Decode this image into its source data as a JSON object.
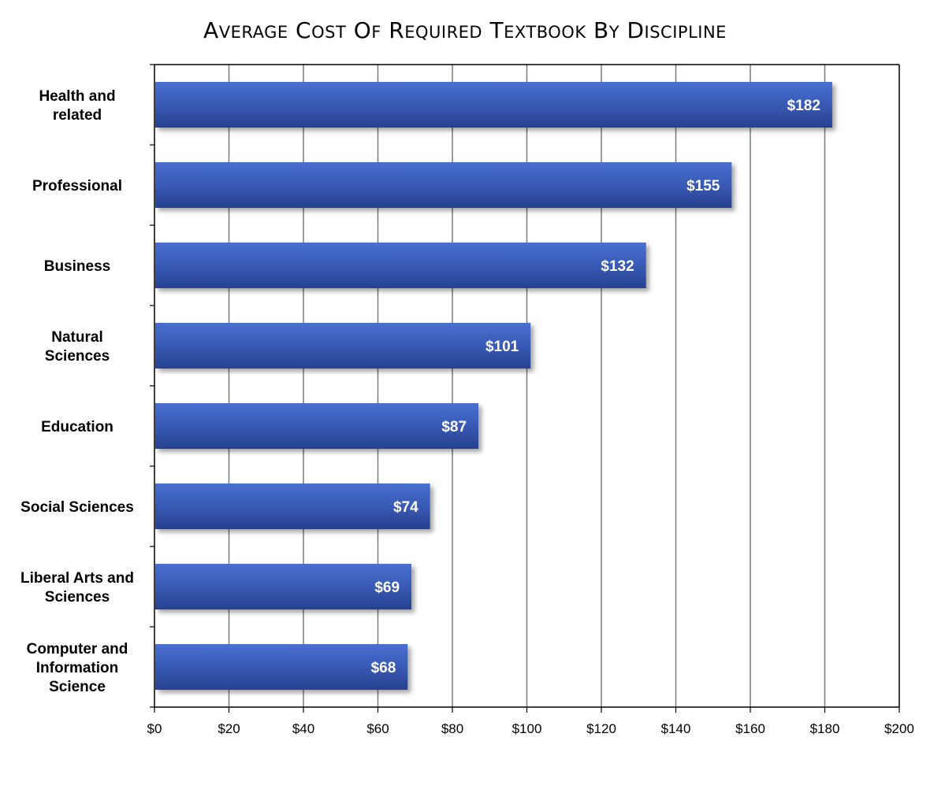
{
  "chart_data": {
    "type": "bar",
    "orientation": "horizontal",
    "title": "Average Cost of Required textbook by Discipline",
    "xlabel": "",
    "ylabel": "",
    "categories": [
      "Health and related",
      "Professional",
      "Business",
      "Natural Sciences",
      "Education",
      "Social Sciences",
      "Liberal Arts and Sciences",
      "Computer and Information Science"
    ],
    "category_lines": [
      [
        "Health and",
        "related"
      ],
      [
        "Professional"
      ],
      [
        "Business"
      ],
      [
        "Natural",
        "Sciences"
      ],
      [
        "Education"
      ],
      [
        "Social Sciences"
      ],
      [
        "Liberal Arts and",
        "Sciences"
      ],
      [
        "Computer and",
        "Information",
        "Science"
      ]
    ],
    "values": [
      182,
      155,
      132,
      101,
      87,
      74,
      69,
      68
    ],
    "data_labels": [
      "$182",
      "$155",
      "$132",
      "$101",
      "$87",
      "$74",
      "$69",
      "$68"
    ],
    "xlim": [
      0,
      200
    ],
    "xticks": [
      0,
      20,
      40,
      60,
      80,
      100,
      120,
      140,
      160,
      180,
      200
    ],
    "xtick_labels": [
      "$0",
      "$20",
      "$40",
      "$60",
      "$80",
      "$100",
      "$120",
      "$140",
      "$160",
      "$180",
      "$200"
    ],
    "grid": true,
    "legend": "none",
    "colors": {
      "bar": "#3a5cb8",
      "bar_dark": "#2a4496",
      "grid": "#7a7a7a",
      "axis": "#000000"
    }
  }
}
